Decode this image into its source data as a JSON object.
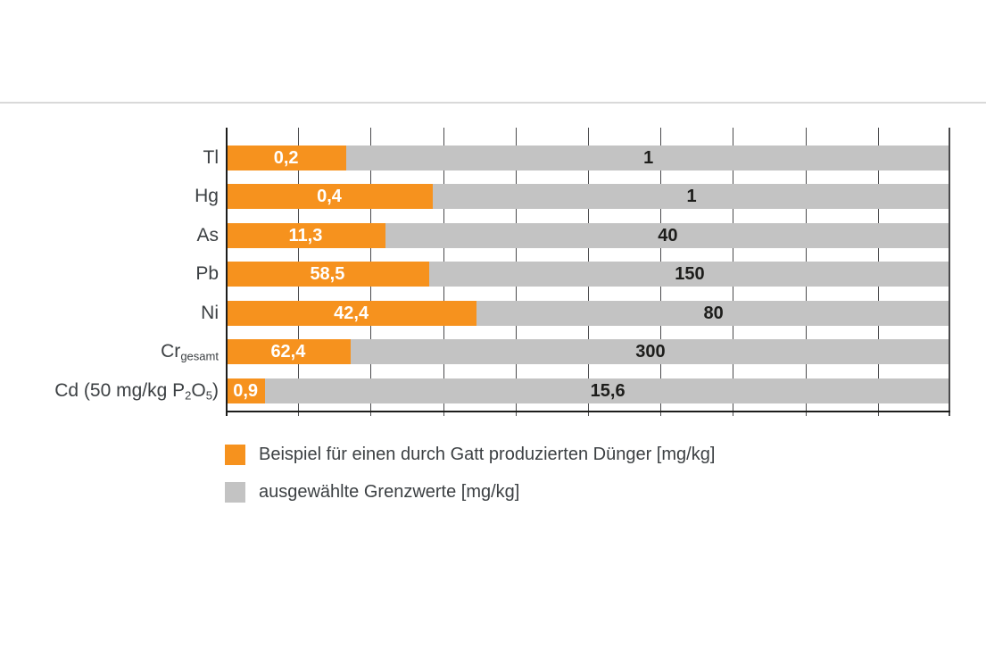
{
  "page": {
    "background_color": "#ffffff",
    "top_rule_color": "#d9d9d9"
  },
  "chart_data": {
    "type": "bar",
    "orientation": "horizontal-stacked",
    "title": "",
    "xlabel": "",
    "ylabel": "",
    "x_axis": {
      "tick_labels_shown": false,
      "gridline_intervals": 10,
      "grid": true
    },
    "bar_width_rule": "sample segment width fraction = sample_value / (sample_value + limit_value); limit segment fills remainder",
    "rows": [
      {
        "label_text": "Tl",
        "label_parts": [
          [
            "Tl",
            false
          ]
        ],
        "sample_value": 0.2,
        "sample_label": "0,2",
        "limit_value": 1,
        "limit_label": "1"
      },
      {
        "label_text": "Hg",
        "label_parts": [
          [
            "Hg",
            false
          ]
        ],
        "sample_value": 0.4,
        "sample_label": "0,4",
        "limit_value": 1,
        "limit_label": "1"
      },
      {
        "label_text": "As",
        "label_parts": [
          [
            "As",
            false
          ]
        ],
        "sample_value": 11.3,
        "sample_label": "11,3",
        "limit_value": 40,
        "limit_label": "40"
      },
      {
        "label_text": "Pb",
        "label_parts": [
          [
            "Pb",
            false
          ]
        ],
        "sample_value": 58.5,
        "sample_label": "58,5",
        "limit_value": 150,
        "limit_label": "150"
      },
      {
        "label_text": "Ni",
        "label_parts": [
          [
            "Ni",
            false
          ]
        ],
        "sample_value": 42.4,
        "sample_label": "42,4",
        "limit_value": 80,
        "limit_label": "80"
      },
      {
        "label_text": "Cr gesamt",
        "label_parts": [
          [
            "Cr",
            false
          ],
          [
            "gesamt",
            true
          ]
        ],
        "sample_value": 62.4,
        "sample_label": "62,4",
        "limit_value": 300,
        "limit_label": "300"
      },
      {
        "label_text": "Cd (50 mg/kg P2O5)",
        "label_parts": [
          [
            "Cd (50 mg/kg P",
            false
          ],
          [
            "2",
            true
          ],
          [
            "O",
            false
          ],
          [
            "5",
            true
          ],
          [
            ")",
            false
          ]
        ],
        "sample_value": 0.9,
        "sample_label": "0,9",
        "limit_value": 15.6,
        "limit_label": "15,6"
      }
    ],
    "colors": {
      "sample": "#f6921e",
      "limit": "#c3c3c3",
      "gridline": "#4a4a4c",
      "axis": "#1d1d1b",
      "sample_value_text": "#ffffff",
      "limit_value_text": "#1d1d1b",
      "category_label_text": "#3c4043"
    },
    "legend": {
      "position": "bottom-left",
      "items": [
        {
          "swatch_color": "#f6921e",
          "label": "Beispiel für einen durch Gatt produzierten Dünger [mg/kg]"
        },
        {
          "swatch_color": "#c3c3c3",
          "label": "ausgewählte Grenzwerte [mg/kg]"
        }
      ]
    }
  }
}
